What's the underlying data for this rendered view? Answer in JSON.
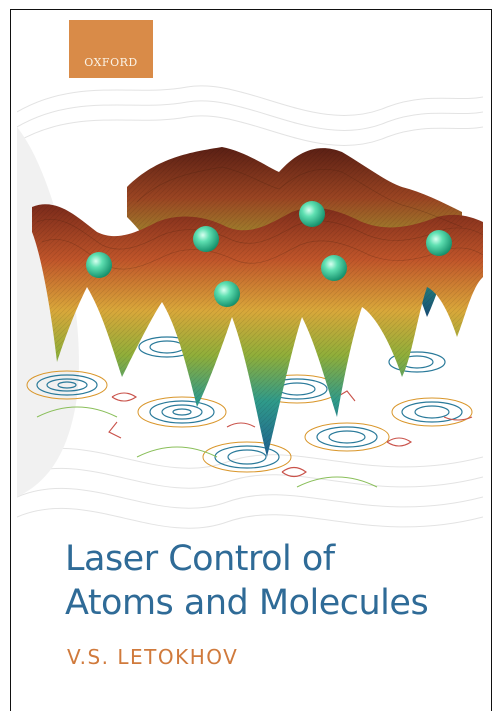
{
  "publisher": {
    "name": "OXFORD",
    "badge_color": "#d98b48"
  },
  "book": {
    "title_line1": "Laser Control of",
    "title_line2": "Atoms and Molecules",
    "author": "V.S. LETOKHOV",
    "title_color": "#2f6b97",
    "author_color": "#d07a3c"
  },
  "artwork": {
    "description_icon": "potential-surface-illustration"
  }
}
